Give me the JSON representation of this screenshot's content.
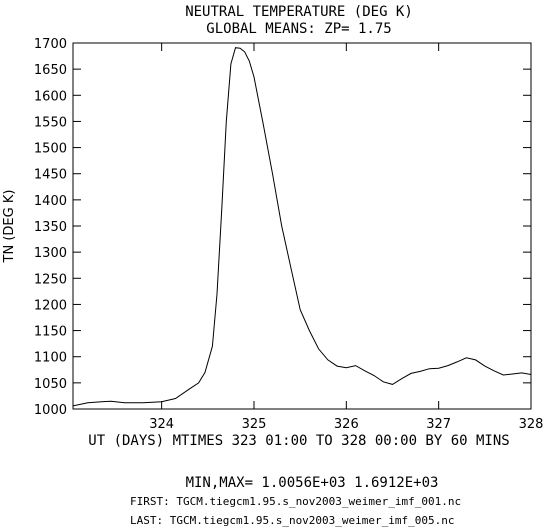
{
  "chart_data": {
    "type": "line",
    "title": "NEUTRAL TEMPERATURE (DEG K)",
    "subtitle": "GLOBAL MEANS: ZP=  1.75",
    "ylabel": "TN (DEG K)",
    "xlabel": "UT (DAYS) MTIMES 323 01:00 TO 328 00:00 BY   60 MINS",
    "xlim": [
      323.04,
      328.0
    ],
    "ylim": [
      1000,
      1700
    ],
    "xticks": [
      324,
      325,
      326,
      327,
      328
    ],
    "yticks": [
      1000,
      1050,
      1100,
      1150,
      1200,
      1250,
      1300,
      1350,
      1400,
      1450,
      1500,
      1550,
      1600,
      1650,
      1700
    ],
    "grid": false,
    "x": [
      323.04,
      323.2,
      323.35,
      323.45,
      323.6,
      323.8,
      324.0,
      324.15,
      324.3,
      324.4,
      324.47,
      324.55,
      324.6,
      324.65,
      324.7,
      324.75,
      324.8,
      324.85,
      324.9,
      324.95,
      325.0,
      325.1,
      325.2,
      325.3,
      325.4,
      325.5,
      325.6,
      325.7,
      325.8,
      325.9,
      326.0,
      326.1,
      326.2,
      326.3,
      326.4,
      326.5,
      326.6,
      326.7,
      326.8,
      326.9,
      327.0,
      327.1,
      327.2,
      327.3,
      327.4,
      327.5,
      327.6,
      327.7,
      327.8,
      327.9,
      328.0
    ],
    "y": [
      1006,
      1012,
      1014,
      1015,
      1012,
      1012,
      1014,
      1020,
      1038,
      1050,
      1070,
      1120,
      1220,
      1380,
      1550,
      1660,
      1691,
      1690,
      1683,
      1665,
      1635,
      1545,
      1450,
      1350,
      1270,
      1190,
      1150,
      1115,
      1094,
      1082,
      1079,
      1083,
      1073,
      1064,
      1052,
      1047,
      1058,
      1068,
      1072,
      1077,
      1078,
      1083,
      1090,
      1098,
      1094,
      1082,
      1073,
      1065,
      1067,
      1069,
      1066
    ]
  },
  "footer": {
    "minmax": "MIN,MAX=  1.0056E+03  1.6912E+03",
    "first": "FIRST: TGCM.tiegcm1.95.s_nov2003_weimer_imf_001.nc",
    "last": "LAST:  TGCM.tiegcm1.95.s_nov2003_weimer_imf_005.nc"
  }
}
